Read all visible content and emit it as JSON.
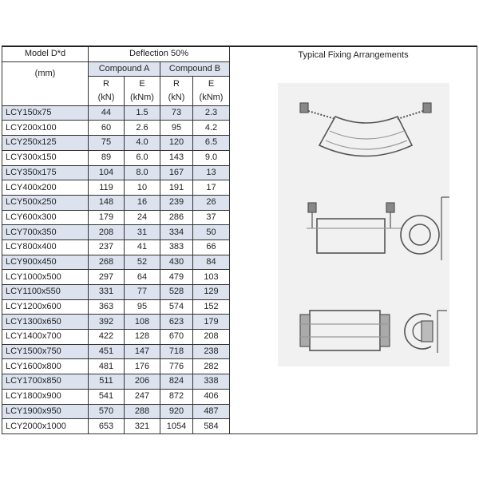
{
  "header": {
    "model": "Model D*d",
    "unit": "(mm)",
    "deflection": "Deflection 50%",
    "compound_a": "Compound A",
    "compound_b": "Compound B",
    "r": "R",
    "e": "E",
    "r_unit": "(kN)",
    "e_unit": "(kNm)",
    "arrangements": "Typical Fixing Arrangements"
  },
  "rows": [
    [
      "LCY150x75",
      "44",
      "1.5",
      "73",
      "2.3"
    ],
    [
      "LCY200x100",
      "60",
      "2.6",
      "95",
      "4.2"
    ],
    [
      "LCY250x125",
      "75",
      "4.0",
      "120",
      "6.5"
    ],
    [
      "LCY300x150",
      "89",
      "6.0",
      "143",
      "9.0"
    ],
    [
      "LCY350x175",
      "104",
      "8.0",
      "167",
      "13"
    ],
    [
      "LCY400x200",
      "119",
      "10",
      "191",
      "17"
    ],
    [
      "LCY500x250",
      "148",
      "16",
      "239",
      "26"
    ],
    [
      "LCY600x300",
      "179",
      "24",
      "286",
      "37"
    ],
    [
      "LCY700x350",
      "208",
      "31",
      "334",
      "50"
    ],
    [
      "LCY800x400",
      "237",
      "41",
      "383",
      "66"
    ],
    [
      "LCY900x450",
      "268",
      "52",
      "430",
      "84"
    ],
    [
      "LCY1000x500",
      "297",
      "64",
      "479",
      "103"
    ],
    [
      "LCY1100x550",
      "331",
      "77",
      "528",
      "129"
    ],
    [
      "LCY1200x600",
      "363",
      "95",
      "574",
      "152"
    ],
    [
      "LCY1300x650",
      "392",
      "108",
      "623",
      "179"
    ],
    [
      "LCY1400x700",
      "422",
      "128",
      "670",
      "208"
    ],
    [
      "LCY1500x750",
      "451",
      "147",
      "718",
      "238"
    ],
    [
      "LCY1600x800",
      "481",
      "176",
      "776",
      "282"
    ],
    [
      "LCY1700x850",
      "511",
      "206",
      "824",
      "338"
    ],
    [
      "LCY1800x900",
      "541",
      "247",
      "872",
      "406"
    ],
    [
      "LCY1900x950",
      "570",
      "288",
      "920",
      "487"
    ],
    [
      "LCY2000x1000",
      "653",
      "321",
      "1054",
      "584"
    ]
  ],
  "colors": {
    "row_highlight": "#dce3ef",
    "border": "#333333"
  }
}
